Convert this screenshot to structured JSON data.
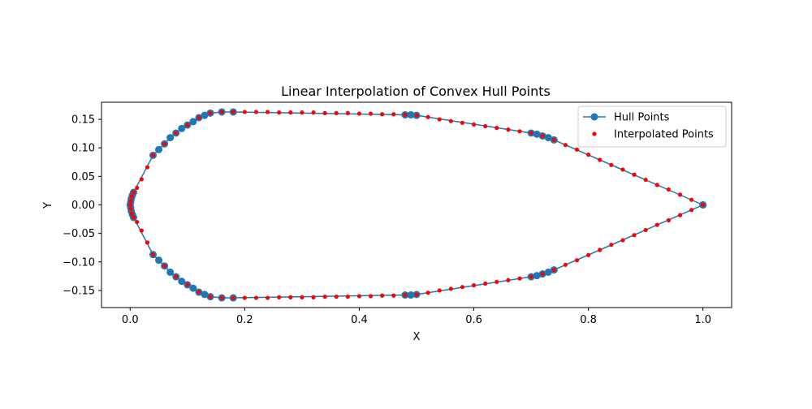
{
  "chart_data": {
    "type": "scatter",
    "title": "Linear Interpolation of Convex Hull Points",
    "xlabel": "X",
    "ylabel": "Y",
    "xlim": [
      -0.05,
      1.05
    ],
    "ylim": [
      -0.18,
      0.18
    ],
    "xticks": [
      0.0,
      0.2,
      0.4,
      0.6,
      0.8,
      1.0
    ],
    "xtick_labels": [
      "0.0",
      "0.2",
      "0.4",
      "0.6",
      "0.8",
      "1.0"
    ],
    "yticks": [
      -0.15,
      -0.1,
      -0.05,
      0.0,
      0.05,
      0.1,
      0.15
    ],
    "ytick_labels": [
      "−0.15",
      "−0.10",
      "−0.05",
      "0.00",
      "0.05",
      "0.10",
      "0.15"
    ],
    "grid": false,
    "legend_position": "top-right",
    "series": [
      {
        "name": "Hull Points",
        "style": "line-with-markers",
        "color": "#1f77b4",
        "x": [
          1.0,
          0.74,
          0.73,
          0.72,
          0.71,
          0.7,
          0.5,
          0.49,
          0.48,
          0.18,
          0.16,
          0.14,
          0.13,
          0.12,
          0.11,
          0.1,
          0.09,
          0.08,
          0.07,
          0.06,
          0.05,
          0.04,
          0.006,
          0.004,
          0.002,
          0.001,
          0.0,
          0.001,
          0.002,
          0.004,
          0.006,
          0.04,
          0.05,
          0.06,
          0.07,
          0.08,
          0.09,
          0.1,
          0.11,
          0.12,
          0.13,
          0.14,
          0.16,
          0.18,
          0.48,
          0.49,
          0.5,
          0.7,
          0.71,
          0.72,
          0.73,
          0.74,
          1.0
        ],
        "y": [
          0.0,
          0.114,
          0.118,
          0.121,
          0.124,
          0.126,
          0.157,
          0.158,
          0.158,
          0.163,
          0.163,
          0.161,
          0.157,
          0.153,
          0.146,
          0.14,
          0.134,
          0.126,
          0.118,
          0.107,
          0.097,
          0.087,
          0.022,
          0.017,
          0.011,
          0.005,
          0.0,
          -0.005,
          -0.011,
          -0.017,
          -0.022,
          -0.087,
          -0.097,
          -0.107,
          -0.118,
          -0.126,
          -0.134,
          -0.14,
          -0.146,
          -0.153,
          -0.157,
          -0.161,
          -0.163,
          -0.163,
          -0.158,
          -0.158,
          -0.157,
          -0.126,
          -0.124,
          -0.121,
          -0.118,
          -0.114,
          0.0
        ]
      },
      {
        "name": "Interpolated Points",
        "style": "markers",
        "color": "#ff0000",
        "x": [
          1.0,
          0.98,
          0.96,
          0.94,
          0.92,
          0.9,
          0.88,
          0.86,
          0.84,
          0.82,
          0.8,
          0.78,
          0.76,
          0.74,
          0.72,
          0.7,
          0.68,
          0.66,
          0.64,
          0.62,
          0.6,
          0.58,
          0.56,
          0.54,
          0.52,
          0.5,
          0.48,
          0.46,
          0.44,
          0.42,
          0.4,
          0.38,
          0.36,
          0.34,
          0.32,
          0.3,
          0.28,
          0.26,
          0.24,
          0.22,
          0.2,
          0.18,
          0.16,
          0.14,
          0.12,
          0.1,
          0.08,
          0.06,
          0.04,
          0.03,
          0.02,
          0.012,
          0.006,
          0.003,
          0.001,
          0.0,
          0.001,
          0.003,
          0.006,
          0.012,
          0.02,
          0.03,
          0.04,
          0.06,
          0.08,
          0.1,
          0.12,
          0.14,
          0.16,
          0.18,
          0.2,
          0.22,
          0.24,
          0.26,
          0.28,
          0.3,
          0.32,
          0.34,
          0.36,
          0.38,
          0.4,
          0.42,
          0.44,
          0.46,
          0.48,
          0.5,
          0.52,
          0.54,
          0.56,
          0.58,
          0.6,
          0.62,
          0.64,
          0.66,
          0.68,
          0.7,
          0.72,
          0.74,
          0.76,
          0.78,
          0.8,
          0.82,
          0.84,
          0.86,
          0.88,
          0.9,
          0.92,
          0.94,
          0.96,
          0.98
        ],
        "y": [
          0.0,
          0.009,
          0.018,
          0.027,
          0.035,
          0.044,
          0.053,
          0.062,
          0.07,
          0.079,
          0.088,
          0.097,
          0.105,
          0.114,
          0.121,
          0.126,
          0.129,
          0.132,
          0.135,
          0.138,
          0.141,
          0.144,
          0.147,
          0.15,
          0.154,
          0.157,
          0.158,
          0.159,
          0.159,
          0.16,
          0.16,
          0.161,
          0.161,
          0.161,
          0.162,
          0.162,
          0.162,
          0.162,
          0.163,
          0.163,
          0.163,
          0.163,
          0.163,
          0.161,
          0.153,
          0.14,
          0.126,
          0.107,
          0.087,
          0.066,
          0.045,
          0.03,
          0.022,
          0.015,
          0.007,
          0.0,
          -0.007,
          -0.015,
          -0.022,
          -0.03,
          -0.045,
          -0.066,
          -0.087,
          -0.107,
          -0.126,
          -0.14,
          -0.153,
          -0.161,
          -0.163,
          -0.163,
          -0.163,
          -0.163,
          -0.163,
          -0.162,
          -0.162,
          -0.162,
          -0.162,
          -0.161,
          -0.161,
          -0.161,
          -0.16,
          -0.16,
          -0.159,
          -0.159,
          -0.158,
          -0.157,
          -0.154,
          -0.15,
          -0.147,
          -0.144,
          -0.141,
          -0.138,
          -0.135,
          -0.132,
          -0.129,
          -0.126,
          -0.121,
          -0.114,
          -0.105,
          -0.097,
          -0.088,
          -0.079,
          -0.07,
          -0.062,
          -0.053,
          -0.044,
          -0.035,
          -0.027,
          -0.018,
          -0.009
        ]
      }
    ]
  }
}
